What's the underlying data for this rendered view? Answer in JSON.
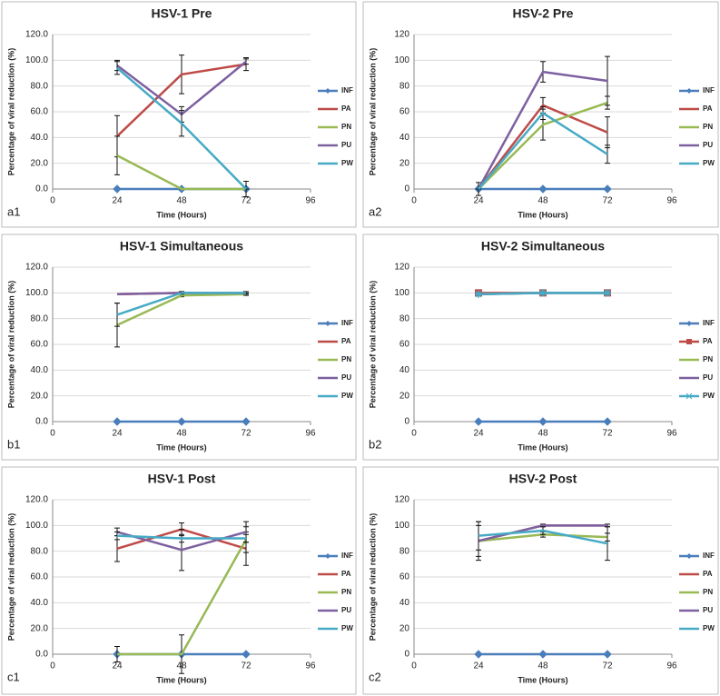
{
  "chart_data": [
    {
      "type": "line",
      "title": "HSV-1 Pre",
      "panel": "a1",
      "x_label": "Time (Hours)",
      "y_label": "Percentage of viral reduction (%)",
      "x": [
        24,
        48,
        72
      ],
      "xlim": [
        0,
        96
      ],
      "xticks": [
        0,
        24,
        48,
        72,
        96
      ],
      "ylim": [
        0,
        120
      ],
      "yticks": [
        {
          "value": 0,
          "label": "0.0"
        },
        {
          "value": 20,
          "label": "20.0"
        },
        {
          "value": 40,
          "label": "40.0"
        },
        {
          "value": 60,
          "label": "60.0"
        },
        {
          "value": 80,
          "label": "80.0"
        },
        {
          "value": 100,
          "label": "100.0"
        },
        {
          "value": 120,
          "label": "120.0"
        }
      ],
      "grid": true,
      "legend": "right",
      "series": [
        {
          "name": "INF",
          "color": "#4a7ebb",
          "marker": "diamond",
          "values": [
            0,
            0,
            0
          ]
        },
        {
          "name": "PA",
          "color": "#be4b48",
          "values": [
            41,
            89,
            97
          ],
          "errors": [
            16,
            15,
            5
          ]
        },
        {
          "name": "PN",
          "color": "#98b954",
          "values": [
            26,
            0,
            0
          ],
          "errors": [
            15,
            0,
            0
          ]
        },
        {
          "name": "PU",
          "color": "#7d60a0",
          "values": [
            96,
            58,
            99
          ],
          "errors": [
            4,
            6,
            2
          ]
        },
        {
          "name": "PW",
          "color": "#46aac5",
          "values": [
            94,
            51,
            0
          ],
          "errors": [
            5,
            10,
            6
          ]
        }
      ]
    },
    {
      "type": "line",
      "title": "HSV-2 Pre",
      "panel": "a2",
      "x_label": "Time (Hours)",
      "y_label": "Percentage of viral reduction (%)",
      "x": [
        24,
        48,
        72
      ],
      "xlim": [
        0,
        96
      ],
      "xticks": [
        0,
        24,
        48,
        72,
        96
      ],
      "ylim": [
        0,
        120
      ],
      "yticks": [
        0,
        20,
        40,
        60,
        80,
        100,
        120
      ],
      "grid": true,
      "legend": "right",
      "series": [
        {
          "name": "INF",
          "color": "#4a7ebb",
          "marker": "diamond",
          "values": [
            0,
            0,
            0
          ]
        },
        {
          "name": "PA",
          "color": "#be4b48",
          "values": [
            0,
            65,
            44
          ],
          "errors": [
            5,
            6,
            12
          ]
        },
        {
          "name": "PN",
          "color": "#98b954",
          "values": [
            0,
            50,
            67
          ],
          "errors": [
            0,
            12,
            5
          ]
        },
        {
          "name": "PU",
          "color": "#7d60a0",
          "values": [
            0,
            91,
            84
          ],
          "errors": [
            0,
            8,
            19
          ]
        },
        {
          "name": "PW",
          "color": "#46aac5",
          "values": [
            0,
            59,
            27
          ],
          "errors": [
            0,
            5,
            7
          ]
        }
      ]
    },
    {
      "type": "line",
      "title": "HSV-1 Simultaneous",
      "panel": "b1",
      "x_label": "Time (Hours)",
      "y_label": "Percentage of viral reduction (%)",
      "x": [
        24,
        48,
        72
      ],
      "xlim": [
        0,
        96
      ],
      "xticks": [
        0,
        24,
        48,
        72,
        96
      ],
      "ylim": [
        0,
        120
      ],
      "yticks": [
        {
          "value": 0,
          "label": "0.0"
        },
        {
          "value": 20,
          "label": "20.0"
        },
        {
          "value": 40,
          "label": "40.0"
        },
        {
          "value": 60,
          "label": "60.0"
        },
        {
          "value": 80,
          "label": "80.0"
        },
        {
          "value": 100,
          "label": "100.0"
        },
        {
          "value": 120,
          "label": "120.0"
        }
      ],
      "grid": true,
      "legend": "right",
      "series": [
        {
          "name": "INF",
          "color": "#4a7ebb",
          "marker": "diamond",
          "values": [
            0,
            0,
            0
          ]
        },
        {
          "name": "PA",
          "color": "#be4b48",
          "values": [
            99,
            100,
            99
          ]
        },
        {
          "name": "PN",
          "color": "#98b954",
          "values": [
            75,
            98,
            99
          ],
          "errors": [
            17,
            1,
            1
          ]
        },
        {
          "name": "PU",
          "color": "#7d60a0",
          "values": [
            99,
            100,
            100
          ]
        },
        {
          "name": "PW",
          "color": "#46aac5",
          "values": [
            83,
            100,
            100
          ],
          "errors": [
            9,
            1,
            1
          ]
        }
      ]
    },
    {
      "type": "line",
      "title": "HSV-2 Simultaneous",
      "panel": "b2",
      "x_label": "Time (Hours)",
      "y_label": "Percentage of viral reduction (%)",
      "x": [
        24,
        48,
        72
      ],
      "xlim": [
        0,
        96
      ],
      "xticks": [
        0,
        24,
        48,
        72,
        96
      ],
      "ylim": [
        0,
        120
      ],
      "yticks": [
        0,
        20,
        40,
        60,
        80,
        100,
        120
      ],
      "grid": true,
      "legend": "right",
      "series": [
        {
          "name": "INF",
          "color": "#4a7ebb",
          "marker": "diamond",
          "values": [
            0,
            0,
            0
          ]
        },
        {
          "name": "PA",
          "color": "#be4b48",
          "marker": "square",
          "values": [
            100,
            100,
            100
          ]
        },
        {
          "name": "PN",
          "color": "#98b954",
          "values": [
            99,
            100,
            100
          ]
        },
        {
          "name": "PU",
          "color": "#7d60a0",
          "values": [
            99,
            100,
            100
          ]
        },
        {
          "name": "PW",
          "color": "#46aac5",
          "marker": "star",
          "values": [
            99,
            100,
            100
          ]
        }
      ]
    },
    {
      "type": "line",
      "title": "HSV-1 Post",
      "panel": "c1",
      "x_label": "Time (Hours)",
      "y_label": "Percentage of viral reduction (%)",
      "x": [
        24,
        48,
        72
      ],
      "xlim": [
        0,
        96
      ],
      "xticks": [
        0,
        24,
        48,
        72,
        96
      ],
      "ylim": [
        0,
        120
      ],
      "yticks": [
        {
          "value": 0,
          "label": "0.0"
        },
        {
          "value": 20,
          "label": "20.0"
        },
        {
          "value": 40,
          "label": "40.0"
        },
        {
          "value": 60,
          "label": "60.0"
        },
        {
          "value": 80,
          "label": "80.0"
        },
        {
          "value": 100,
          "label": "100.0"
        },
        {
          "value": 120,
          "label": "120.0"
        }
      ],
      "grid": true,
      "legend": "right",
      "series": [
        {
          "name": "INF",
          "color": "#4a7ebb",
          "marker": "diamond",
          "values": [
            0,
            0,
            0
          ]
        },
        {
          "name": "PA",
          "color": "#be4b48",
          "values": [
            82,
            97,
            82
          ],
          "errors": [
            10,
            5,
            13
          ]
        },
        {
          "name": "PN",
          "color": "#98b954",
          "values": [
            0,
            0,
            89
          ],
          "errors": [
            6,
            15,
            10
          ]
        },
        {
          "name": "PU",
          "color": "#7d60a0",
          "values": [
            95,
            81,
            95
          ],
          "errors": [
            3,
            16,
            8
          ]
        },
        {
          "name": "PW",
          "color": "#46aac5",
          "values": [
            92,
            90,
            90
          ],
          "errors": [
            3,
            3,
            3
          ]
        }
      ]
    },
    {
      "type": "line",
      "title": "HSV-2 Post",
      "panel": "c2",
      "x_label": "Time (Hours)",
      "y_label": "Percentage of viral reduction (%)",
      "x": [
        24,
        48,
        72
      ],
      "xlim": [
        0,
        96
      ],
      "xticks": [
        0,
        24,
        48,
        72,
        96
      ],
      "ylim": [
        0,
        120
      ],
      "yticks": [
        0,
        20,
        40,
        60,
        80,
        100,
        120
      ],
      "grid": true,
      "legend": "right",
      "series": [
        {
          "name": "INF",
          "color": "#4a7ebb",
          "marker": "diamond",
          "values": [
            0,
            0,
            0
          ]
        },
        {
          "name": "PA",
          "color": "#be4b48",
          "values": [
            88,
            100,
            100
          ],
          "errors": [
            15,
            1,
            1
          ]
        },
        {
          "name": "PN",
          "color": "#98b954",
          "values": [
            88,
            93,
            91
          ],
          "errors": [
            12,
            2,
            3
          ]
        },
        {
          "name": "PU",
          "color": "#7d60a0",
          "values": [
            88,
            100,
            100
          ]
        },
        {
          "name": "PW",
          "color": "#46aac5",
          "values": [
            92,
            96,
            86
          ],
          "errors": [
            11,
            3,
            13
          ]
        }
      ]
    }
  ]
}
